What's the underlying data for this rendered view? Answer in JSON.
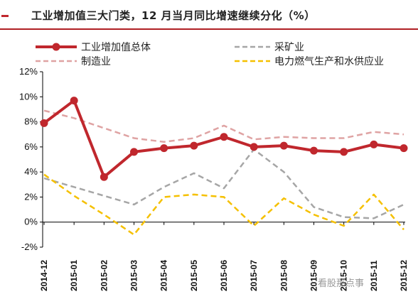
{
  "title": "工业增加值三大门类，12 月当月同比增速继续分化（%）",
  "watermark": "看股那点事",
  "chart_data": {
    "type": "line",
    "categories": [
      "2014-12",
      "2015-01",
      "2015-02",
      "2015-03",
      "2015-04",
      "2015-05",
      "2015-06",
      "2015-07",
      "2015-08",
      "2015-09",
      "2015-10",
      "2015-11",
      "2015-12"
    ],
    "ylim": [
      -2,
      12
    ],
    "yticks": [
      "-2%",
      "0%",
      "2%",
      "4%",
      "6%",
      "8%",
      "10%",
      "12%"
    ],
    "ytick_values": [
      -2,
      0,
      2,
      4,
      6,
      8,
      10,
      12
    ],
    "legend_position": "top",
    "series": [
      {
        "name": "工业增加值总体",
        "color": "#c0272d",
        "style": "solid-marker",
        "values": [
          7.9,
          9.7,
          3.6,
          5.6,
          5.9,
          6.1,
          6.8,
          6.0,
          6.1,
          5.7,
          5.6,
          6.2,
          5.9
        ]
      },
      {
        "name": "采矿业",
        "color": "#a6a6a6",
        "style": "dashed",
        "values": [
          3.5,
          2.8,
          2.1,
          1.4,
          2.8,
          3.9,
          2.7,
          5.8,
          4.0,
          1.2,
          0.4,
          0.3,
          1.4
        ]
      },
      {
        "name": "制造业",
        "color": "#dfa3a3",
        "style": "dashed",
        "values": [
          8.9,
          8.3,
          7.5,
          6.7,
          6.4,
          6.7,
          7.7,
          6.6,
          6.8,
          6.7,
          6.7,
          7.2,
          7.0
        ]
      },
      {
        "name": "电力燃气生产和水供应业",
        "color": "#f5c000",
        "style": "dashed",
        "values": [
          3.8,
          2.1,
          0.6,
          -1.0,
          2.0,
          2.2,
          2.0,
          -0.3,
          1.9,
          0.6,
          -0.3,
          2.2,
          -0.6
        ]
      }
    ]
  }
}
